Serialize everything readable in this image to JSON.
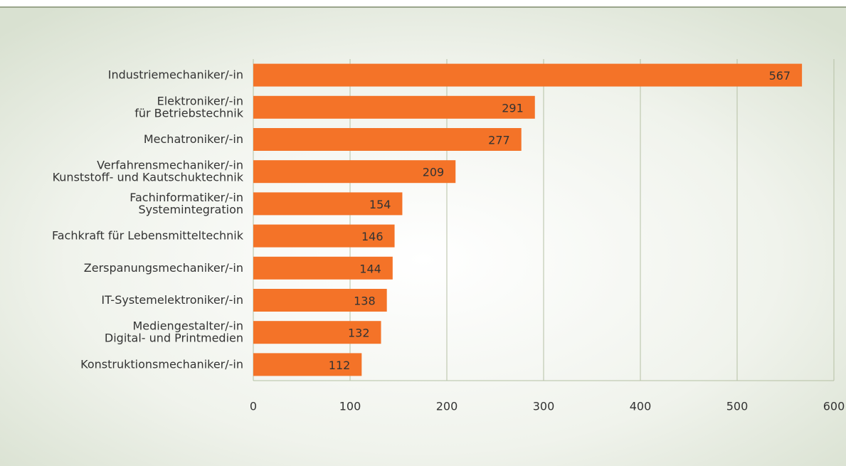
{
  "chart_data": {
    "type": "bar",
    "orientation": "horizontal",
    "categories": [
      [
        "Industriemechaniker/-in"
      ],
      [
        "Elektroniker/-in",
        "für Betriebstechnik"
      ],
      [
        "Mechatroniker/-in"
      ],
      [
        "Verfahrensmechaniker/-in",
        "Kunststoff- und Kautschuktechnik"
      ],
      [
        "Fachinformatiker/-in",
        "Systemintegration"
      ],
      [
        "Fachkraft für Lebensmitteltechnik"
      ],
      [
        "Zerspanungsmechaniker/-in"
      ],
      [
        "IT-Systemelektroniker/-in"
      ],
      [
        "Mediengestalter/-in",
        "Digital- und Printmedien"
      ],
      [
        "Konstruktionsmechaniker/-in"
      ]
    ],
    "values": [
      567,
      291,
      277,
      209,
      154,
      146,
      144,
      138,
      132,
      112
    ],
    "color": "#f47328",
    "xlim": [
      0,
      600
    ],
    "xticks": [
      0,
      100,
      200,
      300,
      400,
      500,
      600
    ],
    "grid": true
  }
}
